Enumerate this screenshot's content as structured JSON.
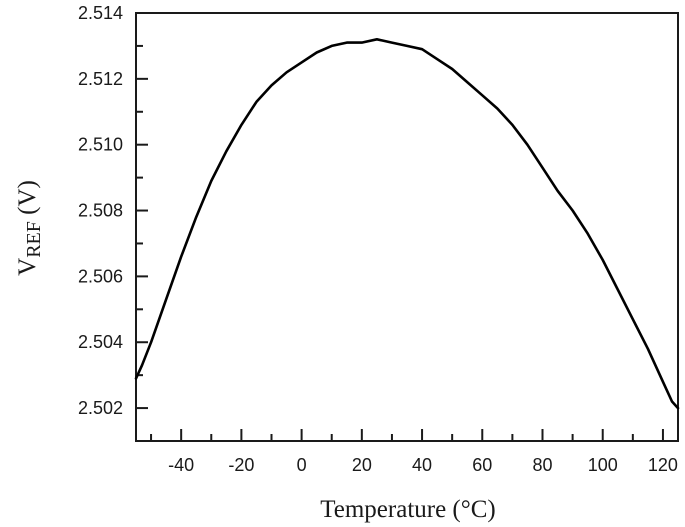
{
  "chart_data": {
    "type": "line",
    "title": "",
    "xlabel": "Temperature (°C)",
    "ylabel": "V_REF (V)",
    "ylabel_main": "V",
    "ylabel_sub": "REF",
    "ylabel_unit": " (V)",
    "xlim": [
      -55,
      125
    ],
    "ylim": [
      2.501,
      2.514
    ],
    "x_ticks": [
      -40,
      -20,
      0,
      20,
      40,
      60,
      80,
      100,
      120
    ],
    "x_tick_labels": [
      "-40",
      "-20",
      "0",
      "20",
      "40",
      "60",
      "80",
      "100",
      "120"
    ],
    "x_minor_ticks": [
      -50,
      -30,
      -10,
      10,
      30,
      50,
      70,
      90,
      110
    ],
    "y_ticks": [
      2.502,
      2.504,
      2.506,
      2.508,
      2.51,
      2.512,
      2.514
    ],
    "y_tick_labels": [
      "2.502",
      "2.504",
      "2.506",
      "2.508",
      "2.510",
      "2.512",
      "2.514"
    ],
    "y_minor_ticks": [
      2.503,
      2.505,
      2.507,
      2.509,
      2.511,
      2.513
    ],
    "grid": false,
    "legend": null,
    "series": [
      {
        "name": "VREF",
        "color": "#000000",
        "x": [
          -55,
          -53,
          -50,
          -45,
          -40,
          -35,
          -30,
          -25,
          -20,
          -15,
          -10,
          -5,
          0,
          5,
          10,
          15,
          20,
          25,
          30,
          35,
          40,
          45,
          50,
          55,
          60,
          65,
          70,
          75,
          80,
          85,
          90,
          95,
          100,
          105,
          110,
          115,
          120,
          123,
          125
        ],
        "y": [
          2.5029,
          2.5033,
          2.504,
          2.5053,
          2.5066,
          2.5078,
          2.5089,
          2.5098,
          2.5106,
          2.5113,
          2.5118,
          2.5122,
          2.5125,
          2.5128,
          2.513,
          2.5131,
          2.5131,
          2.5132,
          2.5131,
          2.513,
          2.5129,
          2.5126,
          2.5123,
          2.5119,
          2.5115,
          2.5111,
          2.5106,
          2.51,
          2.5093,
          2.5086,
          2.508,
          2.5073,
          2.5065,
          2.5056,
          2.5047,
          2.5038,
          2.5028,
          2.5022,
          2.502
        ]
      }
    ]
  }
}
